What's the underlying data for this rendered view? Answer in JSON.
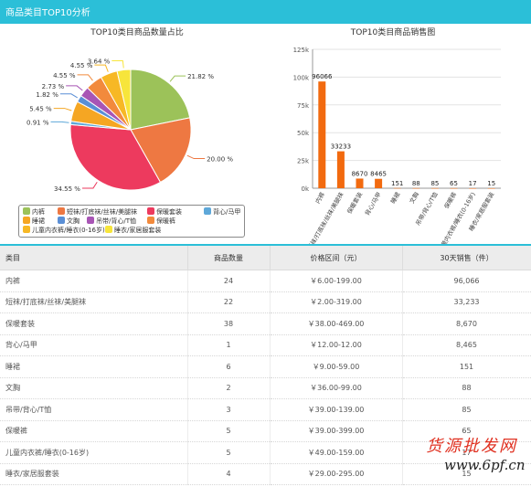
{
  "header": {
    "title": "商品类目TOP10分析"
  },
  "colors": {
    "accent": "#2bbfd8",
    "bar": "#f26a0f"
  },
  "chart_data": [
    {
      "type": "pie",
      "title": "TOP10类目商品数量占比",
      "slices": [
        {
          "name": "内裤",
          "value": 21.82,
          "label": "21.82 %",
          "color": "#9cc259"
        },
        {
          "name": "短袜/打底袜/丝袜/美腿袜",
          "value": 20.0,
          "label": "20.00 %",
          "color": "#ee7842"
        },
        {
          "name": "保暖套装",
          "value": 34.55,
          "label": "34.55 %",
          "color": "#ed3a5e"
        },
        {
          "name": "背心/马甲",
          "value": 0.91,
          "label": "0.91 %",
          "color": "#5ea8d9"
        },
        {
          "name": "睡裙",
          "value": 5.45,
          "label": "5.45 %",
          "color": "#f5a623"
        },
        {
          "name": "文胸",
          "value": 1.82,
          "label": "1.82 %",
          "color": "#5a8fd6"
        },
        {
          "name": "吊带/背心/T恤",
          "value": 2.73,
          "label": "2.73 %",
          "color": "#a855b5"
        },
        {
          "name": "保暖裤",
          "value": 4.55,
          "label": "4.55 %",
          "color": "#f28a3c"
        },
        {
          "name": "儿童内衣裤/睡衣(0-16岁)",
          "value": 4.55,
          "label": "4.55 %",
          "color": "#f7b825"
        },
        {
          "name": "睡衣/家居服套装",
          "value": 3.64,
          "label": "3.64 %",
          "color": "#f7e53b"
        }
      ]
    },
    {
      "type": "bar",
      "title": "TOP10类目商品销售图",
      "categories": [
        "内裤",
        "短袜/打底袜/丝袜/美腿袜",
        "保暖套装",
        "背心/马甲",
        "睡裙",
        "文胸",
        "吊带/背心/T恤",
        "保暖裤",
        "儿童内衣裤/睡衣(0-16岁)",
        "睡衣/家居服套装"
      ],
      "values": [
        96066,
        33233,
        8670,
        8465,
        151,
        88,
        85,
        65,
        17,
        15
      ],
      "ylim": [
        0,
        125000
      ],
      "yticks": [
        "0k",
        "25k",
        "50k",
        "75k",
        "100k",
        "125k"
      ]
    }
  ],
  "table": {
    "headers": [
      "类目",
      "商品数量",
      "价格区间（元）",
      "30天销售（件）"
    ],
    "rows": [
      [
        "内裤",
        "24",
        "￥6.00-199.00",
        "96,066"
      ],
      [
        "短袜/打底袜/丝袜/美腿袜",
        "22",
        "￥2.00-319.00",
        "33,233"
      ],
      [
        "保暖套装",
        "38",
        "￥38.00-469.00",
        "8,670"
      ],
      [
        "背心/马甲",
        "1",
        "￥12.00-12.00",
        "8,465"
      ],
      [
        "睡裙",
        "6",
        "￥9.00-59.00",
        "151"
      ],
      [
        "文胸",
        "2",
        "￥36.00-99.00",
        "88"
      ],
      [
        "吊带/背心/T恤",
        "3",
        "￥39.00-139.00",
        "85"
      ],
      [
        "保暖裤",
        "5",
        "￥39.00-399.00",
        "65"
      ],
      [
        "儿童内衣裤/睡衣(0-16岁)",
        "5",
        "￥49.00-159.00",
        "17"
      ],
      [
        "睡衣/家居服套装",
        "4",
        "￥29.00-295.00",
        "15"
      ]
    ]
  },
  "watermark": {
    "line1": "货源批发网",
    "line2": "www.6pf.cn"
  }
}
